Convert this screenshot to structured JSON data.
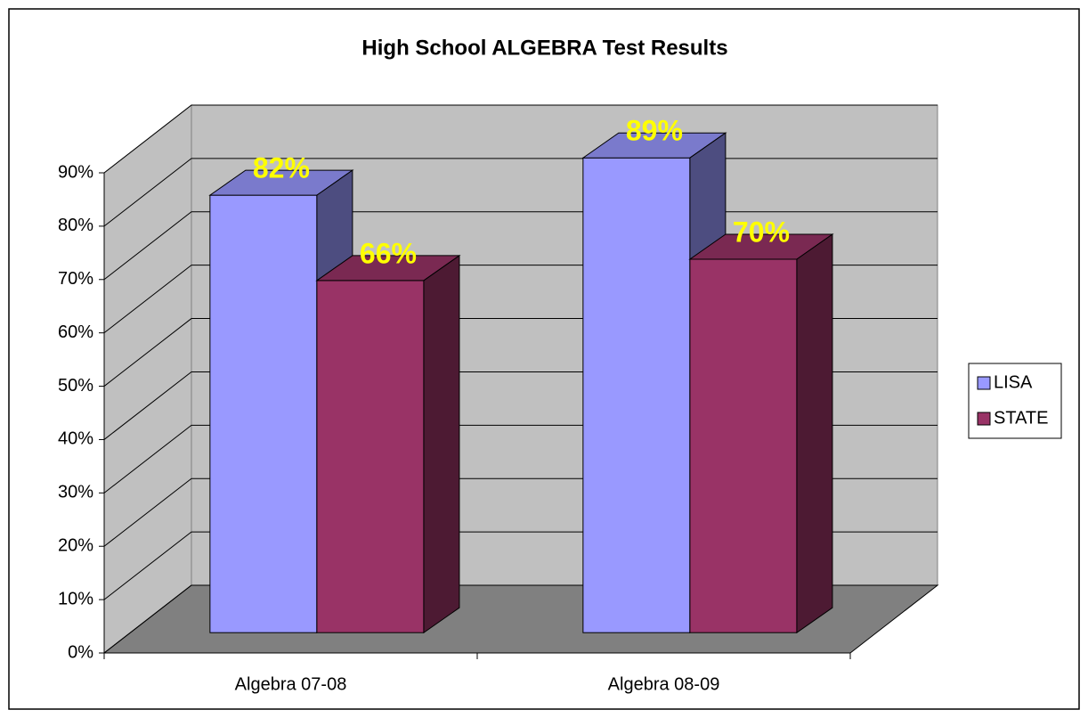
{
  "chart_data": {
    "type": "bar3d",
    "title": "High School ALGEBRA Test Results",
    "categories": [
      "Algebra 07-08",
      "Algebra 08-09"
    ],
    "series": [
      {
        "name": "LISA",
        "color": "#9999ff",
        "values": [
          82,
          89
        ],
        "value_labels": [
          "82%",
          "89%"
        ]
      },
      {
        "name": "STATE",
        "color": "#993366",
        "values": [
          66,
          70
        ],
        "value_labels": [
          "66%",
          "70%"
        ]
      }
    ],
    "ylim": [
      0,
      90
    ],
    "yticks": [
      {
        "value": 0,
        "label": "0%"
      },
      {
        "value": 10,
        "label": "10%"
      },
      {
        "value": 20,
        "label": "20%"
      },
      {
        "value": 30,
        "label": "30%"
      },
      {
        "value": 40,
        "label": "40%"
      },
      {
        "value": 50,
        "label": "50%"
      },
      {
        "value": 60,
        "label": "60%"
      },
      {
        "value": 70,
        "label": "70%"
      },
      {
        "value": 80,
        "label": "80%"
      },
      {
        "value": 90,
        "label": "90%"
      }
    ],
    "grid": true,
    "legend": "right"
  }
}
